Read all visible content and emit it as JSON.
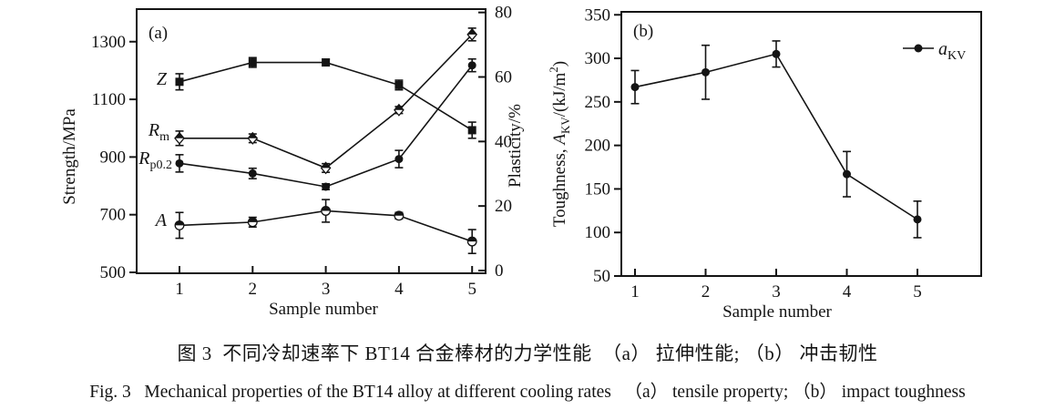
{
  "figure": {
    "caption_zh": "图 3  不同冷却速率下 BT14 合金棒材的力学性能  （a） 拉伸性能; （b） 冲击韧性",
    "caption_en": "Fig. 3   Mechanical properties of the BT14 alloy at different cooling rates   （a） tensile property; （b） impact toughness"
  },
  "colors": {
    "ink": "#141414",
    "background": "#ffffff"
  },
  "chart_data": [
    {
      "id": "a",
      "type": "line",
      "panel_label": "(a)",
      "title": "Tensile properties vs sample number",
      "xlabel": "Sample number",
      "x": [
        1,
        2,
        3,
        4,
        5
      ],
      "x_tick_labels": [
        "1",
        "2",
        "3",
        "4",
        "5"
      ],
      "grid": false,
      "axes": {
        "left": {
          "label": "Strength/MPa",
          "range": [
            500,
            1300
          ],
          "ticks": [
            500,
            700,
            900,
            1100,
            1300
          ],
          "label_parts": [
            {
              "t": "Strength/MPa"
            }
          ]
        },
        "right": {
          "label": "Plasticity/%",
          "range": [
            0,
            80
          ],
          "ticks": [
            0,
            20,
            40,
            60,
            80
          ],
          "label_parts": [
            {
              "t": "Plasticity/%"
            }
          ]
        }
      },
      "series": [
        {
          "name": "Z",
          "axis": "right",
          "marker": "square",
          "label": "Z",
          "label_parts": [
            {
              "t": "Z",
              "i": true
            }
          ],
          "values": [
            58.5,
            64.5,
            64.5,
            57.5,
            43.5
          ],
          "errors": [
            2.5,
            1.5,
            1,
            1.5,
            2.5
          ]
        },
        {
          "name": "Rm",
          "axis": "left",
          "marker": "diamond-half",
          "label": "Rm",
          "label_parts": [
            {
              "t": "R",
              "i": true
            },
            {
              "t": "m",
              "sub": true
            }
          ],
          "values": [
            965,
            965,
            862,
            1063,
            1325
          ],
          "errors": [
            25,
            15,
            15,
            12,
            22
          ]
        },
        {
          "name": "Rp02",
          "axis": "left",
          "marker": "circle",
          "label": "Rp0.2",
          "label_parts": [
            {
              "t": "R",
              "i": true
            },
            {
              "t": "p0.2",
              "sub": true
            }
          ],
          "values": [
            878,
            843,
            797,
            893,
            1218
          ],
          "errors": [
            30,
            18,
            10,
            30,
            22
          ]
        },
        {
          "name": "A",
          "axis": "right",
          "marker": "circle-half",
          "label": "A",
          "label_parts": [
            {
              "t": "A",
              "i": true
            }
          ],
          "values": [
            14,
            15,
            18.5,
            17,
            9
          ],
          "errors": [
            4,
            1.5,
            3.5,
            1,
            3.7
          ]
        }
      ]
    },
    {
      "id": "b",
      "type": "line",
      "panel_label": "(b)",
      "title": "Impact toughness vs sample number",
      "xlabel": "Sample number",
      "x": [
        1,
        2,
        3,
        4,
        5
      ],
      "x_tick_labels": [
        "1",
        "2",
        "3",
        "4",
        "5"
      ],
      "grid": false,
      "axes": {
        "left": {
          "label": "Toughness, AKV/(kJ/m2)",
          "range": [
            50,
            350
          ],
          "ticks": [
            50,
            100,
            150,
            200,
            250,
            300,
            350
          ],
          "label_parts": [
            {
              "t": "Toughness, "
            },
            {
              "t": "A",
              "i": true
            },
            {
              "t": "KV",
              "sub": true
            },
            {
              "t": "/(kJ/m"
            },
            {
              "t": "2",
              "sup": true
            },
            {
              "t": ")"
            }
          ]
        }
      },
      "legend": {
        "label": "aKV",
        "label_parts": [
          {
            "t": "a",
            "i": true
          },
          {
            "t": "KV",
            "sub": true
          }
        ],
        "position": "top-right"
      },
      "series": [
        {
          "name": "aKV",
          "axis": "left",
          "marker": "circle",
          "label": "aKV",
          "label_parts": [
            {
              "t": "a",
              "i": true
            },
            {
              "t": "KV",
              "sub": true
            }
          ],
          "values": [
            267,
            284,
            305,
            167,
            115
          ],
          "errors": [
            19,
            31,
            15,
            26,
            21
          ]
        }
      ]
    }
  ]
}
